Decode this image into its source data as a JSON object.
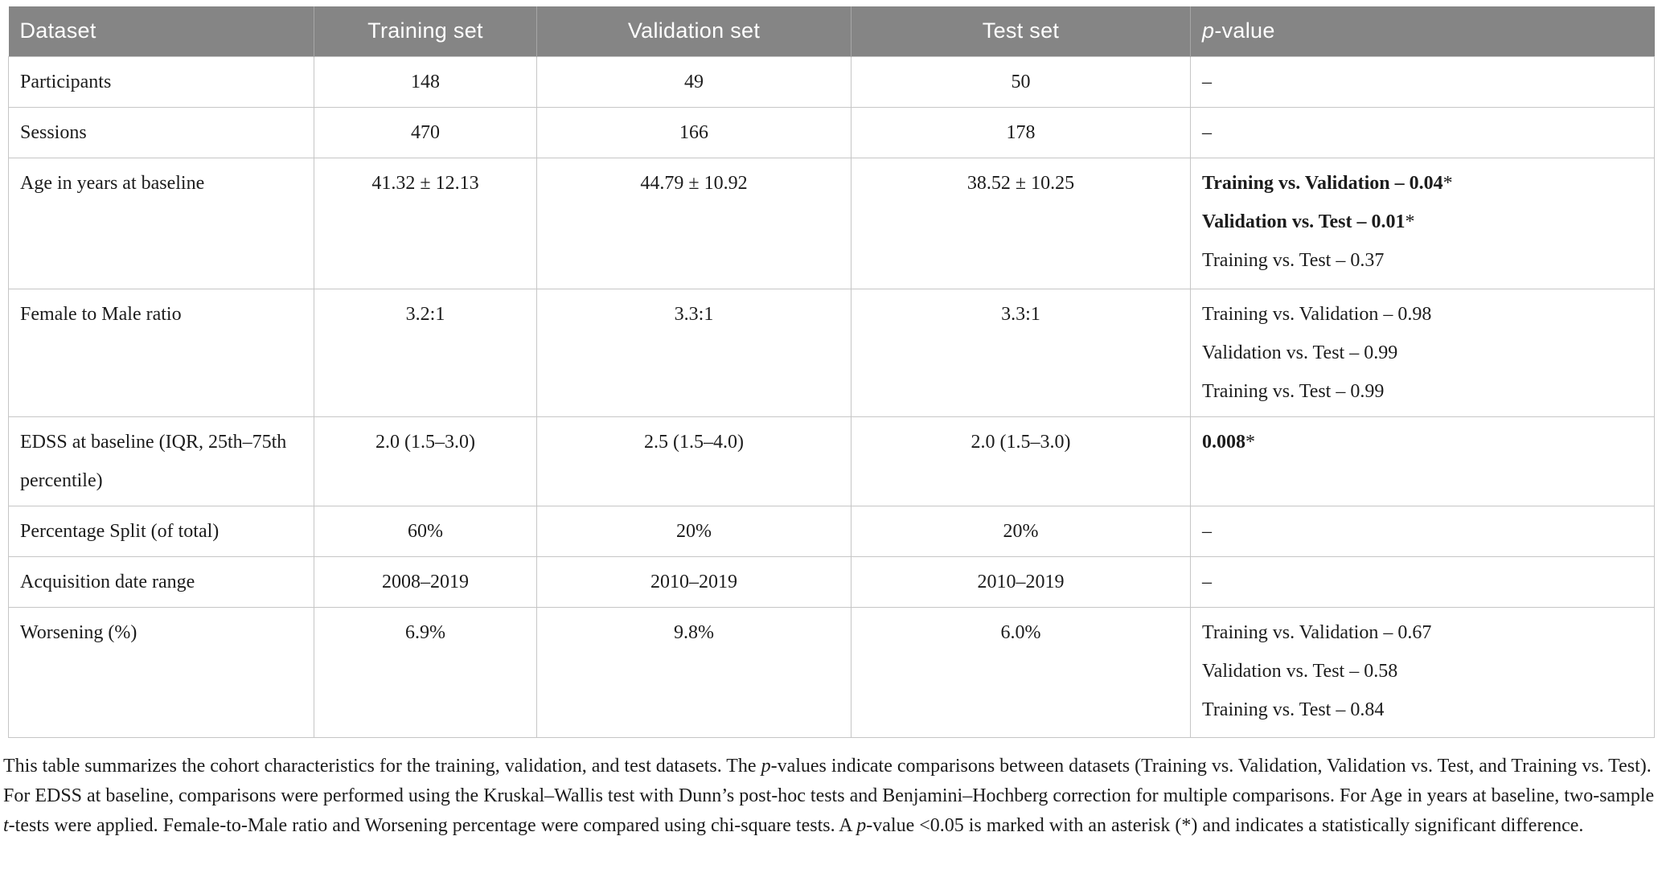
{
  "table": {
    "header": {
      "dataset": "Dataset",
      "training": "Training set",
      "validation": "Validation set",
      "test": "Test set",
      "pvalue_italic": "p",
      "pvalue_rest": "-value"
    },
    "rows": [
      {
        "label": "Participants",
        "values": [
          "148",
          "49",
          "50"
        ],
        "p": [
          {
            "text": "–"
          }
        ]
      },
      {
        "label": "Sessions",
        "values": [
          "470",
          "166",
          "178"
        ],
        "p": [
          {
            "text": "–"
          }
        ]
      },
      {
        "label": "Age in years at baseline",
        "values": [
          "41.32 ± 12.13",
          "44.79 ± 10.92",
          "38.52 ± 10.25"
        ],
        "p": [
          {
            "text": "Training vs. Validation – 0.04",
            "bold": true,
            "star": true
          },
          {
            "text": "Validation vs. Test – 0.01",
            "bold": true,
            "star": true
          },
          {
            "text": "Training vs. Test – 0.37"
          }
        ]
      },
      {
        "label": "Female to Male ratio",
        "values": [
          "3.2:1",
          "3.3:1",
          "3.3:1"
        ],
        "p": [
          {
            "text": "Training vs. Validation – 0.98"
          },
          {
            "text": "Validation vs. Test – 0.99"
          },
          {
            "text": "Training vs. Test – 0.99"
          }
        ]
      },
      {
        "label": "EDSS at baseline (IQR, 25th–75th percentile)",
        "values": [
          "2.0 (1.5–3.0)",
          "2.5 (1.5–4.0)",
          "2.0 (1.5–3.0)"
        ],
        "p": [
          {
            "text": "0.008",
            "bold": true,
            "star": true
          }
        ]
      },
      {
        "label": "Percentage Split (of total)",
        "values": [
          "60%",
          "20%",
          "20%"
        ],
        "p": [
          {
            "text": "–"
          }
        ]
      },
      {
        "label": "Acquisition date range",
        "values": [
          "2008–2019",
          "2010–2019",
          "2010–2019"
        ],
        "p": [
          {
            "text": "–"
          }
        ]
      },
      {
        "label": "Worsening (%)",
        "values": [
          "6.9%",
          "9.8%",
          "6.0%"
        ],
        "p": [
          {
            "text": "Training vs. Validation – 0.67"
          },
          {
            "text": "Validation vs. Test – 0.58"
          },
          {
            "text": "Training vs. Test – 0.84"
          }
        ]
      }
    ]
  },
  "footnote": {
    "segments": [
      {
        "text": "This table summarizes the cohort characteristics for the training, validation, and test datasets. The "
      },
      {
        "text": "p",
        "italic": true
      },
      {
        "text": "-values indicate comparisons between datasets (Training vs. Validation, Validation vs. Test, and Training vs. Test). For EDSS at baseline, comparisons were performed using the Kruskal–Wallis test with Dunn’s post-hoc tests and Benjamini–Hochberg correction for multiple comparisons. For Age in years at baseline, two-sample "
      },
      {
        "text": "t",
        "italic": true
      },
      {
        "text": "-tests were applied. Female-to-Male ratio and Worsening percentage were compared using chi-square tests. A "
      },
      {
        "text": "p",
        "italic": true
      },
      {
        "text": "-value <0.05 is marked with an asterisk (*) and indicates a statistically significant difference."
      }
    ]
  },
  "colors": {
    "header_bg": "#858585",
    "header_text": "#ffffff",
    "border": "#c6c6c6",
    "text": "#1c1c1c"
  }
}
